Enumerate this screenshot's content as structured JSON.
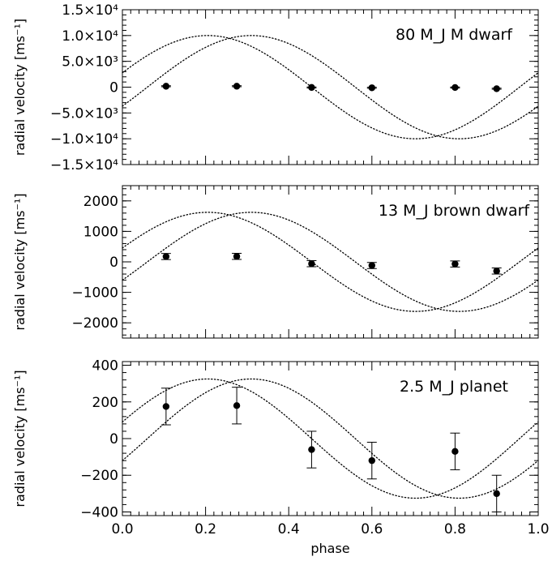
{
  "chart_data": [
    {
      "type": "scatter",
      "ylabel": "radial velocity [ms⁻¹]",
      "annotation": "80 M_J M dwarf",
      "xlim": [
        0.0,
        1.0
      ],
      "ylim": [
        -15000,
        15000
      ],
      "yticks": [
        -15000,
        -10000,
        -5000,
        0,
        5000,
        10000,
        15000
      ],
      "ytick_labels": [
        "−1.5×10⁴",
        "−1.0×10⁴",
        "−5.0×10³",
        "0",
        "5.0×10³",
        "1.0×10⁴",
        "1.5×10⁴"
      ],
      "points": [
        {
          "x": 0.105,
          "y": 175,
          "err": 100
        },
        {
          "x": 0.275,
          "y": 180,
          "err": 100
        },
        {
          "x": 0.455,
          "y": -60,
          "err": 100
        },
        {
          "x": 0.6,
          "y": -120,
          "err": 100
        },
        {
          "x": 0.8,
          "y": -70,
          "err": 100
        },
        {
          "x": 0.9,
          "y": -300,
          "err": 100
        }
      ],
      "curves": [
        {
          "style": "dotted",
          "amplitude": 10000,
          "peak_phase": 0.205,
          "offset": 0
        },
        {
          "style": "dotted",
          "amplitude": 10000,
          "peak_phase": 0.31,
          "offset": 0
        }
      ]
    },
    {
      "type": "scatter",
      "ylabel": "radial velocity [ms⁻¹]",
      "annotation": "13 M_J brown dwarf",
      "xlim": [
        0.0,
        1.0
      ],
      "ylim": [
        -2500,
        2500
      ],
      "yticks": [
        -2000,
        -1000,
        0,
        1000,
        2000
      ],
      "ytick_labels": [
        "−2000",
        "−1000",
        "0",
        "1000",
        "2000"
      ],
      "points": [
        {
          "x": 0.105,
          "y": 175,
          "err": 100
        },
        {
          "x": 0.275,
          "y": 180,
          "err": 100
        },
        {
          "x": 0.455,
          "y": -60,
          "err": 100
        },
        {
          "x": 0.6,
          "y": -120,
          "err": 100
        },
        {
          "x": 0.8,
          "y": -70,
          "err": 100
        },
        {
          "x": 0.9,
          "y": -300,
          "err": 100
        }
      ],
      "curves": [
        {
          "style": "dotted",
          "amplitude": 1625,
          "peak_phase": 0.205,
          "offset": 0
        },
        {
          "style": "dotted",
          "amplitude": 1625,
          "peak_phase": 0.31,
          "offset": 0
        }
      ]
    },
    {
      "type": "scatter",
      "ylabel": "radial velocity [ms⁻¹]",
      "annotation": "2.5 M_J planet",
      "xlabel": "phase",
      "xlim": [
        0.0,
        1.0
      ],
      "ylim": [
        -420,
        420
      ],
      "yticks": [
        -400,
        -200,
        0,
        200,
        400
      ],
      "ytick_labels": [
        "−400",
        "−200",
        "0",
        "200",
        "400"
      ],
      "xticks": [
        0.0,
        0.2,
        0.4,
        0.6,
        0.8,
        1.0
      ],
      "xtick_labels": [
        "0.0",
        "0.2",
        "0.4",
        "0.6",
        "0.8",
        "1.0"
      ],
      "points": [
        {
          "x": 0.105,
          "y": 175,
          "err": 100
        },
        {
          "x": 0.275,
          "y": 180,
          "err": 100
        },
        {
          "x": 0.455,
          "y": -60,
          "err": 100
        },
        {
          "x": 0.6,
          "y": -120,
          "err": 100
        },
        {
          "x": 0.8,
          "y": -70,
          "err": 100
        },
        {
          "x": 0.9,
          "y": -300,
          "err": 100
        }
      ],
      "curves": [
        {
          "style": "dotted",
          "amplitude": 325,
          "peak_phase": 0.205,
          "offset": 0
        },
        {
          "style": "dotted",
          "amplitude": 325,
          "peak_phase": 0.31,
          "offset": 0
        }
      ]
    }
  ]
}
